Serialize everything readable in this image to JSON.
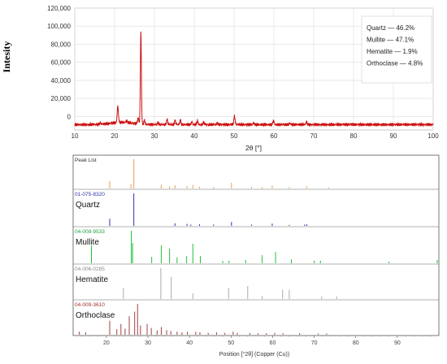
{
  "chart_data": [
    {
      "type": "line",
      "title": "",
      "xlabel": "2θ [°]",
      "ylabel": "Intesity",
      "xlim": [
        10,
        100
      ],
      "ylim": [
        -15000,
        120000
      ],
      "xticks": [
        "10",
        "20",
        "30",
        "40",
        "50",
        "60",
        "70",
        "80",
        "90",
        "100"
      ],
      "yticks": [
        "0",
        "20,000",
        "40,000",
        "60,000",
        "80,000",
        "100,000",
        "120,000"
      ],
      "grid": true,
      "color": "#cc1111",
      "legend": [
        {
          "label": "Quartz — 46.2%"
        },
        {
          "label": "Mullite — 47.1%"
        },
        {
          "label": "Hematite — 1.9%"
        },
        {
          "label": "Orthoclase — 4.8%"
        }
      ],
      "background": -9000,
      "peaks": [
        {
          "x": 16.4,
          "y": 1500
        },
        {
          "x": 20.8,
          "y": 18000
        },
        {
          "x": 23.0,
          "y": 2000
        },
        {
          "x": 25.9,
          "y": 6500
        },
        {
          "x": 26.6,
          "y": 102000
        },
        {
          "x": 27.5,
          "y": 4000
        },
        {
          "x": 30.9,
          "y": 2000
        },
        {
          "x": 33.2,
          "y": 5500
        },
        {
          "x": 35.2,
          "y": 4500
        },
        {
          "x": 36.5,
          "y": 5000
        },
        {
          "x": 39.4,
          "y": 3000
        },
        {
          "x": 40.8,
          "y": 4000
        },
        {
          "x": 42.4,
          "y": 2500
        },
        {
          "x": 45.8,
          "y": 1500
        },
        {
          "x": 50.1,
          "y": 9000
        },
        {
          "x": 54.9,
          "y": 2000
        },
        {
          "x": 59.9,
          "y": 4500
        },
        {
          "x": 64.0,
          "y": 1500
        },
        {
          "x": 68.2,
          "y": 3000
        }
      ]
    },
    {
      "type": "bar",
      "xlabel": "Position [°2θ] (Copper (Cu))",
      "xlim": [
        12,
        100
      ],
      "xticks": [
        "20",
        "30",
        "40",
        "50",
        "60",
        "70",
        "80",
        "90"
      ],
      "panels": [
        {
          "code": "Peak List",
          "name": "",
          "color": "#e8a050",
          "code_color": "#333333",
          "peaks": [
            {
              "x": 20.8,
              "h": 0.25
            },
            {
              "x": 26.6,
              "h": 1.0
            },
            {
              "x": 25.9,
              "h": 0.14
            },
            {
              "x": 33.2,
              "h": 0.12
            },
            {
              "x": 35.2,
              "h": 0.08
            },
            {
              "x": 36.5,
              "h": 0.11
            },
            {
              "x": 39.4,
              "h": 0.08
            },
            {
              "x": 40.8,
              "h": 0.12
            },
            {
              "x": 42.4,
              "h": 0.06
            },
            {
              "x": 45.8,
              "h": 0.05
            },
            {
              "x": 50.1,
              "h": 0.2
            },
            {
              "x": 54.9,
              "h": 0.06
            },
            {
              "x": 57.5,
              "h": 0.05
            },
            {
              "x": 59.9,
              "h": 0.1
            },
            {
              "x": 64.0,
              "h": 0.05
            },
            {
              "x": 68.2,
              "h": 0.07
            },
            {
              "x": 73.5,
              "h": 0.04
            }
          ]
        },
        {
          "code": "01-075-8320",
          "name": "Quartz",
          "color": "#3030b0",
          "code_color": "#3030b0",
          "peaks": [
            {
              "x": 20.8,
              "h": 0.22
            },
            {
              "x": 26.6,
              "h": 1.0
            },
            {
              "x": 36.5,
              "h": 0.08
            },
            {
              "x": 39.4,
              "h": 0.06
            },
            {
              "x": 40.3,
              "h": 0.04
            },
            {
              "x": 42.4,
              "h": 0.05
            },
            {
              "x": 45.8,
              "h": 0.04
            },
            {
              "x": 50.1,
              "h": 0.12
            },
            {
              "x": 54.9,
              "h": 0.04
            },
            {
              "x": 59.9,
              "h": 0.07
            },
            {
              "x": 64.0,
              "h": 0.03
            },
            {
              "x": 67.7,
              "h": 0.04
            },
            {
              "x": 68.2,
              "h": 0.05
            }
          ]
        },
        {
          "code": "04-008-9533",
          "name": "Mullite",
          "color": "#20c040",
          "code_color": "#20a040",
          "peaks": [
            {
              "x": 16.4,
              "h": 0.55
            },
            {
              "x": 26.0,
              "h": 1.0
            },
            {
              "x": 26.3,
              "h": 0.62
            },
            {
              "x": 30.9,
              "h": 0.2
            },
            {
              "x": 33.2,
              "h": 0.55
            },
            {
              "x": 35.2,
              "h": 0.45
            },
            {
              "x": 37.0,
              "h": 0.18
            },
            {
              "x": 39.3,
              "h": 0.22
            },
            {
              "x": 40.8,
              "h": 0.6
            },
            {
              "x": 42.6,
              "h": 0.22
            },
            {
              "x": 48.0,
              "h": 0.07
            },
            {
              "x": 49.5,
              "h": 0.08
            },
            {
              "x": 53.5,
              "h": 0.1
            },
            {
              "x": 57.5,
              "h": 0.25
            },
            {
              "x": 60.7,
              "h": 0.35
            },
            {
              "x": 64.5,
              "h": 0.12
            },
            {
              "x": 70.0,
              "h": 0.08
            },
            {
              "x": 71.5,
              "h": 0.08
            },
            {
              "x": 88.0,
              "h": 0.05
            },
            {
              "x": 99.6,
              "h": 0.1
            }
          ]
        },
        {
          "code": "04-006-0285",
          "name": "Hematite",
          "color": "#aaaaaa",
          "code_color": "#888888",
          "peaks": [
            {
              "x": 24.1,
              "h": 0.35
            },
            {
              "x": 33.1,
              "h": 1.0
            },
            {
              "x": 35.6,
              "h": 0.72
            },
            {
              "x": 40.8,
              "h": 0.18
            },
            {
              "x": 49.4,
              "h": 0.36
            },
            {
              "x": 54.0,
              "h": 0.42
            },
            {
              "x": 57.5,
              "h": 0.1
            },
            {
              "x": 62.4,
              "h": 0.3
            },
            {
              "x": 64.0,
              "h": 0.3
            },
            {
              "x": 71.8,
              "h": 0.08
            },
            {
              "x": 75.4,
              "h": 0.08
            }
          ]
        },
        {
          "code": "04-009-3610",
          "name": "Orthoclase",
          "color": "#a04040",
          "code_color": "#a03030",
          "peaks": [
            {
              "x": 13.5,
              "h": 0.1
            },
            {
              "x": 15.0,
              "h": 0.08
            },
            {
              "x": 20.8,
              "h": 0.45
            },
            {
              "x": 22.5,
              "h": 0.18
            },
            {
              "x": 23.5,
              "h": 0.35
            },
            {
              "x": 24.5,
              "h": 0.2
            },
            {
              "x": 25.5,
              "h": 0.6
            },
            {
              "x": 26.8,
              "h": 0.75
            },
            {
              "x": 27.5,
              "h": 1.0
            },
            {
              "x": 28.2,
              "h": 0.3
            },
            {
              "x": 29.8,
              "h": 0.35
            },
            {
              "x": 30.8,
              "h": 0.22
            },
            {
              "x": 32.2,
              "h": 0.14
            },
            {
              "x": 33.2,
              "h": 0.25
            },
            {
              "x": 34.5,
              "h": 0.15
            },
            {
              "x": 35.5,
              "h": 0.12
            },
            {
              "x": 37.0,
              "h": 0.1
            },
            {
              "x": 38.2,
              "h": 0.08
            },
            {
              "x": 39.5,
              "h": 0.1
            },
            {
              "x": 41.5,
              "h": 0.1
            },
            {
              "x": 42.5,
              "h": 0.08
            },
            {
              "x": 44.5,
              "h": 0.06
            },
            {
              "x": 46.5,
              "h": 0.08
            },
            {
              "x": 48.5,
              "h": 0.06
            },
            {
              "x": 50.5,
              "h": 0.1
            },
            {
              "x": 51.5,
              "h": 0.06
            },
            {
              "x": 54.5,
              "h": 0.06
            },
            {
              "x": 56.5,
              "h": 0.05
            },
            {
              "x": 58.5,
              "h": 0.05
            },
            {
              "x": 60.5,
              "h": 0.06
            },
            {
              "x": 62.5,
              "h": 0.05
            },
            {
              "x": 66.5,
              "h": 0.05
            },
            {
              "x": 71.0,
              "h": 0.04
            },
            {
              "x": 73.0,
              "h": 0.04
            }
          ]
        }
      ]
    }
  ]
}
